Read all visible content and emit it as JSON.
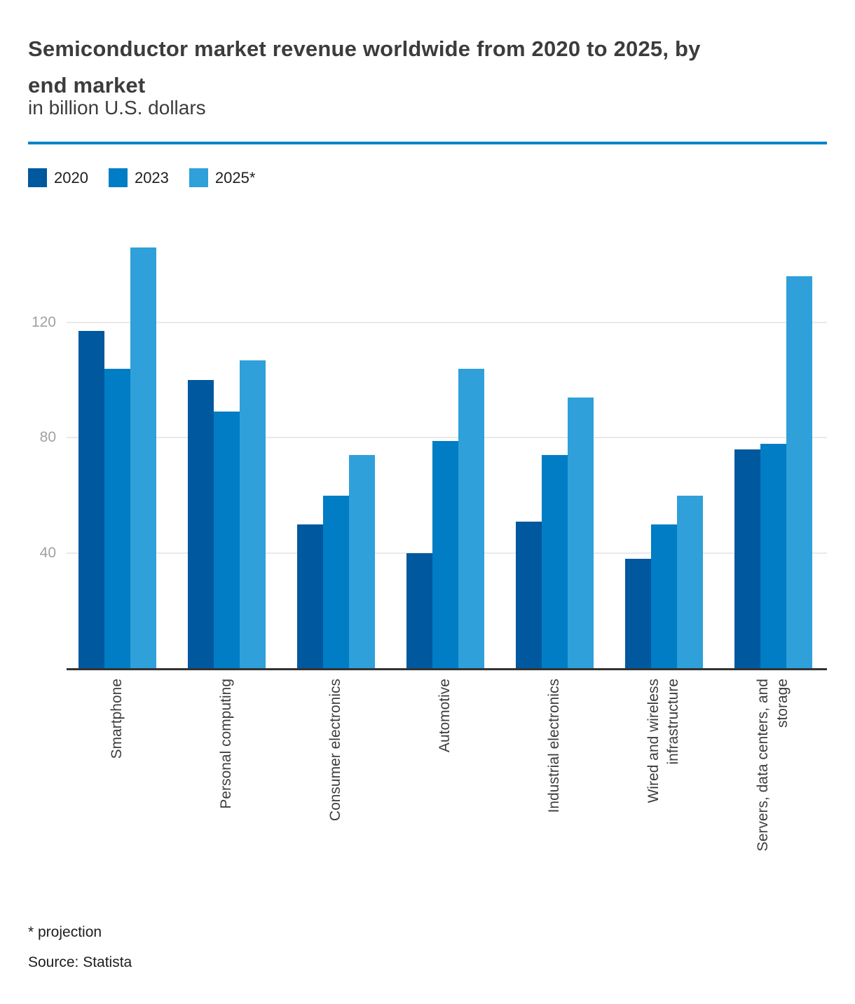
{
  "header": {
    "title": "Semiconductor market revenue worldwide from 2020 to 2025, by end market",
    "title_lines": [
      "Semiconductor market revenue worldwide from 2020 to 2025, by",
      "end market"
    ],
    "subtitle": "in billion U.S. dollars",
    "divider_color": "#0a84c8"
  },
  "footer": {
    "note": "* projection",
    "source": "Source: Statista"
  },
  "chart_data": {
    "type": "bar",
    "title": "Semiconductor market revenue worldwide from 2020 to 2025, by end market",
    "subtitle": "in billion U.S. dollars",
    "ylabel": "billion U.S. dollars",
    "xlabel": "",
    "categories": [
      "Smartphone",
      "Personal computing",
      "Consumer electronics",
      "Automotive",
      "Industrial electronics",
      "Wired and wireless infrastructure",
      "Servers, data centers, and storage"
    ],
    "category_lines": [
      [
        "Smartphone"
      ],
      [
        "Personal computing"
      ],
      [
        "Consumer electronics"
      ],
      [
        "Automotive"
      ],
      [
        "Industrial electronics"
      ],
      [
        "Wired and wireless",
        "infrastructure"
      ],
      [
        "Servers, data centers, and",
        "storage"
      ]
    ],
    "series": [
      {
        "name": "2020",
        "color": "#00589e",
        "values": [
          117,
          100,
          50,
          40,
          51,
          38,
          76
        ]
      },
      {
        "name": "2023",
        "color": "#007dc4",
        "values": [
          104,
          89,
          60,
          79,
          74,
          50,
          78
        ]
      },
      {
        "name": "2025*",
        "color": "#2fa0d9",
        "values": [
          146,
          107,
          74,
          104,
          94,
          60,
          136
        ]
      }
    ],
    "yticks": [
      40,
      80,
      120
    ],
    "ylim": [
      0,
      150
    ],
    "grid": true,
    "legend_position": "top-left"
  }
}
